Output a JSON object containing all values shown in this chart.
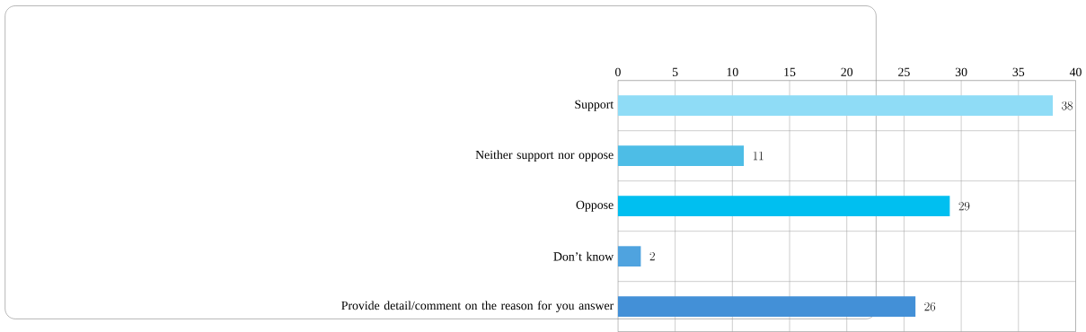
{
  "chart_data": {
    "type": "bar",
    "orientation": "horizontal",
    "categories": [
      "Support",
      "Neither support nor oppose",
      "Oppose",
      "Don’t know",
      "Provide detail/comment on the reason for you answer"
    ],
    "values": [
      38,
      11,
      29,
      2,
      26
    ],
    "colors": [
      "#8fdcf6",
      "#4dbde6",
      "#00bff0",
      "#4fa3df",
      "#4390d7"
    ],
    "xlim": [
      0,
      40
    ],
    "xticks": [
      0,
      5,
      10,
      15,
      20,
      25,
      30,
      35,
      40
    ],
    "grid": true,
    "data_labels": true
  }
}
